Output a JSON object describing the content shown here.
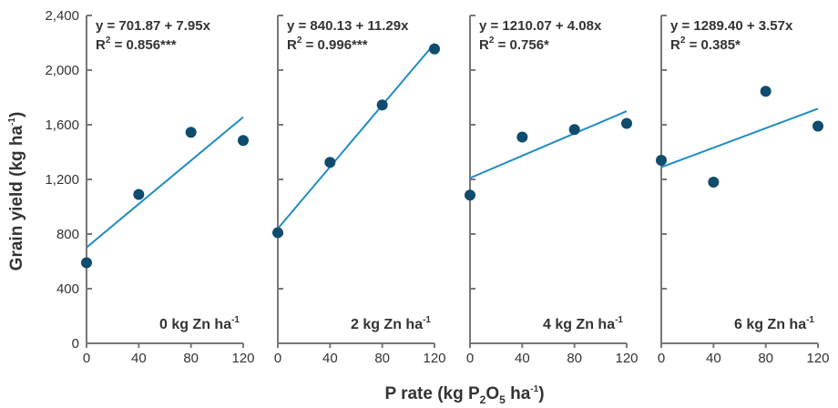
{
  "colors": {
    "line": "#1f8cc4",
    "point": "#0f4c6e",
    "axis": "#777777",
    "text": "#333333"
  },
  "chart_data": {
    "type": "scatter",
    "ylabel": {
      "base": "Grain yield (kg ha",
      "sup": "-1",
      "close": ")"
    },
    "xlabel": {
      "p1": "P rate (kg P",
      "s1": "2",
      "p2": "O",
      "s2": "5",
      "p3": " ha",
      "sup": "-1",
      "p4": ")"
    },
    "ylim": [
      0,
      2400
    ],
    "yticks": [
      "0",
      "400",
      "800",
      "1,200",
      "1,600",
      "2,000",
      "2,400"
    ],
    "ytick_values": [
      0,
      400,
      800,
      1200,
      1600,
      2000,
      2400
    ],
    "xlim": [
      0,
      120
    ],
    "xticks": [
      "0",
      "40",
      "80",
      "120"
    ],
    "xtick_values": [
      0,
      40,
      80,
      120
    ],
    "panels": [
      {
        "label": {
          "text": "0 kg Zn ha",
          "sup": "-1"
        },
        "equation": "y = 701.87 + 7.95x",
        "r2": {
          "r": "R",
          "sup": "2",
          "rest": " = 0.856***"
        },
        "intercept": 701.87,
        "slope": 7.95,
        "x": [
          0,
          40,
          80,
          120
        ],
        "y": [
          590,
          1090,
          1545,
          1485
        ]
      },
      {
        "label": {
          "text": "2 kg Zn ha",
          "sup": "-1"
        },
        "equation": "y = 840.13 + 11.29x",
        "r2": {
          "r": "R",
          "sup": "2",
          "rest": " = 0.996***"
        },
        "intercept": 840.13,
        "slope": 11.29,
        "x": [
          0,
          40,
          80,
          120
        ],
        "y": [
          810,
          1325,
          1745,
          2155
        ]
      },
      {
        "label": {
          "text": "4 kg Zn ha",
          "sup": "-1"
        },
        "equation": "y = 1210.07 + 4.08x",
        "r2": {
          "r": "R",
          "sup": "2",
          "rest": " = 0.756*"
        },
        "intercept": 1210.07,
        "slope": 4.08,
        "x": [
          0,
          40,
          80,
          120
        ],
        "y": [
          1085,
          1510,
          1565,
          1610
        ]
      },
      {
        "label": {
          "text": "6 kg Zn ha",
          "sup": "-1"
        },
        "equation": "y = 1289.40 + 3.57x",
        "r2": {
          "r": "R",
          "sup": "2",
          "rest": " = 0.385*"
        },
        "intercept": 1289.4,
        "slope": 3.57,
        "x": [
          0,
          40,
          80,
          120
        ],
        "y": [
          1340,
          1180,
          1845,
          1590
        ]
      }
    ]
  }
}
